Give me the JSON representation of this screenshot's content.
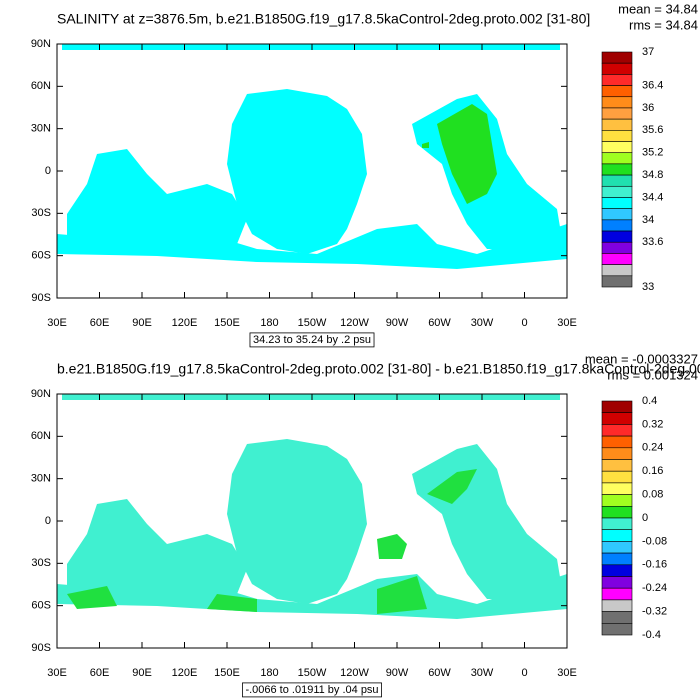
{
  "panels": [
    {
      "title": "SALINITY at z=3876.5m, b.e21.B1850G.f19_g17.8.5kaControl-2deg.proto.002 [31-80]",
      "stats": [
        "mean = 34.84",
        "rms = 34.84"
      ],
      "lat_labels": [
        "90N",
        "60N",
        "30N",
        "0",
        "30S",
        "60S",
        "90S"
      ],
      "lon_labels": [
        "30E",
        "60E",
        "90E",
        "120E",
        "150E",
        "180",
        "150W",
        "120W",
        "90W",
        "60W",
        "30W",
        "0",
        "30E"
      ],
      "contour_info": "34.23 to 35.24 by .2 psu",
      "ocean_color": "#00ffff",
      "patch_color": "#20e020",
      "colorbar": {
        "labels": [
          "37",
          "36.4",
          "36",
          "35.6",
          "35.2",
          "34.8",
          "34.4",
          "34",
          "33.6",
          "33"
        ],
        "colors": [
          "#a00000",
          "#d00000",
          "#ff2a2a",
          "#ff6000",
          "#ff8c1a",
          "#ffa040",
          "#ffc040",
          "#ffe040",
          "#ffff60",
          "#a0ff20",
          "#20e020",
          "#20e0b0",
          "#40f0d0",
          "#00ffff",
          "#30c8ff",
          "#0080ff",
          "#0000e0",
          "#8000e0",
          "#ff00ff",
          "#c8c8c8",
          "#707070"
        ]
      }
    },
    {
      "title": "b.e21.B1850G.f19_g17.8.5kaControl-2deg.proto.002 [31-80] - b.e21.B1850.f19_g17.8kaControl-2deg.00",
      "stats": [
        "mean = -0.0003327",
        "rms = 0.001324"
      ],
      "lat_labels": [
        "90N",
        "60N",
        "30N",
        "0",
        "30S",
        "60S",
        "90S"
      ],
      "lon_labels": [
        "30E",
        "60E",
        "90E",
        "120E",
        "150E",
        "180",
        "150W",
        "120W",
        "90W",
        "60W",
        "30W",
        "0",
        "30E"
      ],
      "contour_info": "-.0066 to .01911 by .04 psu",
      "ocean_color": "#40f0d0",
      "patch_color": "#20e040",
      "colorbar": {
        "labels": [
          "0.4",
          "0.32",
          "0.24",
          "0.16",
          "0.08",
          "0",
          "-0.08",
          "-0.16",
          "-0.24",
          "-0.32",
          "-0.4"
        ],
        "colors": [
          "#a00000",
          "#d00000",
          "#ff2a2a",
          "#ff6000",
          "#ff8c1a",
          "#ffc040",
          "#ffe040",
          "#ffff60",
          "#a0ff20",
          "#20e020",
          "#40f0d0",
          "#00ffff",
          "#30c8ff",
          "#0080ff",
          "#0000e0",
          "#8000e0",
          "#ff00ff",
          "#c8c8c8",
          "#707070",
          "#707070"
        ]
      }
    }
  ]
}
